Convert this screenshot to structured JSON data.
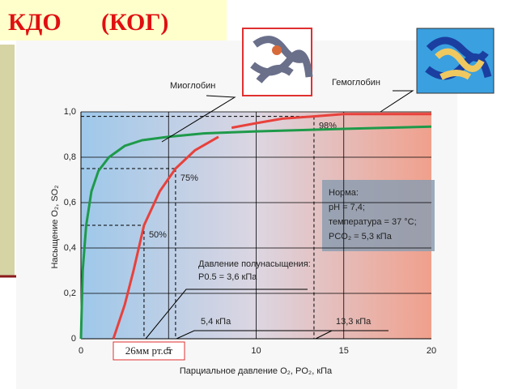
{
  "header": {
    "title": "КДО",
    "subtitle": "(КОГ)"
  },
  "chart_data": {
    "type": "line",
    "y_label": "Насыщение O₂, SO₂",
    "x_label": "Парциальное давление O₂, PO₂, кПа",
    "xlim": [
      0,
      20
    ],
    "xticks": [
      0,
      5,
      10,
      15,
      20
    ],
    "ylim": [
      0,
      1.0
    ],
    "yticks": [
      0,
      {
        "value": 0.2,
        "label": "0,2"
      },
      {
        "value": 0.4,
        "label": "0,4"
      },
      {
        "value": 0.6,
        "label": "0,6"
      },
      {
        "value": 0.8,
        "label": "0,8"
      },
      {
        "value": 1.0,
        "label": "1,0"
      }
    ],
    "grid": true,
    "series": [
      {
        "name": "Миоглобин",
        "color": "#1e9a4a",
        "x": [
          0,
          0.1,
          0.3,
          0.6,
          1,
          1.6,
          2.5,
          3.5,
          5,
          7,
          10,
          15,
          20
        ],
        "values": [
          0,
          0.3,
          0.5,
          0.65,
          0.74,
          0.8,
          0.85,
          0.875,
          0.89,
          0.905,
          0.914,
          0.925,
          0.935
        ]
      },
      {
        "name": "Гемоглобин",
        "color": "#e8413c",
        "x": [
          1.85,
          2.5,
          3,
          3.6,
          4.5,
          5.4,
          6.5,
          7.85,
          8.2,
          8.6,
          10,
          11.5,
          13.3,
          15,
          20
        ],
        "values": [
          0,
          0.15,
          0.3,
          0.5,
          0.65,
          0.75,
          0.83,
          0.89,
          null,
          0.93,
          0.95,
          0.97,
          0.98,
          0.99,
          0.99
        ]
      }
    ],
    "guides": [
      {
        "label": "50%",
        "x": 3.6,
        "y": 0.5
      },
      {
        "label": "75%",
        "x": 5.4,
        "y": 0.75
      },
      {
        "label": "98%",
        "x": 13.3,
        "y": 0.98
      }
    ],
    "notes": [
      "Давление полунасыщения:",
      "P0.5 = 3,6 кПа",
      "5,4 кПа",
      "13,3 кПа"
    ],
    "info_box": [
      "Норма:",
      "pH = 7,4;",
      "температура = 37 °C;",
      "PCO₂ = 5,3 кПа"
    ],
    "callout": "26мм рт.ст"
  }
}
